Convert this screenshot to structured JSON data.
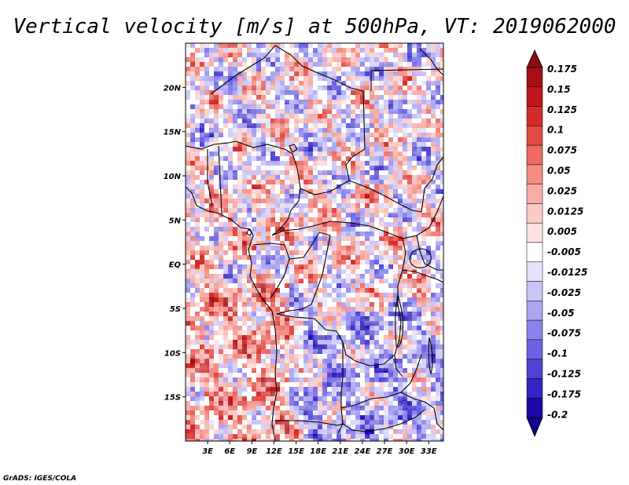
{
  "title": "Vertical velocity [m/s] at 500hPa, VT: 2019062000",
  "credit": "GrADS: IGES/COLA",
  "map": {
    "lon_range": [
      0,
      35
    ],
    "lat_range": [
      -20,
      25
    ],
    "lon_ticks": [
      {
        "label": "3E",
        "lon": 3
      },
      {
        "label": "6E",
        "lon": 6
      },
      {
        "label": "9E",
        "lon": 9
      },
      {
        "label": "12E",
        "lon": 12
      },
      {
        "label": "15E",
        "lon": 15
      },
      {
        "label": "18E",
        "lon": 18
      },
      {
        "label": "21E",
        "lon": 21
      },
      {
        "label": "24E",
        "lon": 24
      },
      {
        "label": "27E",
        "lon": 27
      },
      {
        "label": "30E",
        "lon": 30
      },
      {
        "label": "33E",
        "lon": 33
      }
    ],
    "lat_ticks": [
      {
        "label": "20N",
        "lat": 20
      },
      {
        "label": "15N",
        "lat": 15
      },
      {
        "label": "10N",
        "lat": 10
      },
      {
        "label": "5N",
        "lat": 5
      },
      {
        "label": "EQ",
        "lat": 0
      },
      {
        "label": "5S",
        "lat": -5
      },
      {
        "label": "10S",
        "lat": -10
      },
      {
        "label": "15S",
        "lat": -15
      }
    ]
  },
  "colorbar": {
    "levels": [
      {
        "label": "0.175",
        "color": "#a50f15"
      },
      {
        "label": "0.15",
        "color": "#c0161e"
      },
      {
        "label": "0.125",
        "color": "#d52a2a"
      },
      {
        "label": "0.1",
        "color": "#e24a44"
      },
      {
        "label": "0.075",
        "color": "#ee6a62"
      },
      {
        "label": "0.05",
        "color": "#f48d85"
      },
      {
        "label": "0.025",
        "color": "#f8aca4"
      },
      {
        "label": "0.0125",
        "color": "#fbcac4"
      },
      {
        "label": "0.005",
        "color": "#fde3df"
      },
      {
        "label": "-0.005",
        "color": "#ffffff"
      },
      {
        "label": "-0.0125",
        "color": "#e4e2fb"
      },
      {
        "label": "-0.025",
        "color": "#c9c5f7"
      },
      {
        "label": "-0.05",
        "color": "#aaa4f2"
      },
      {
        "label": "-0.075",
        "color": "#8b83ec"
      },
      {
        "label": "-0.1",
        "color": "#6c62e3"
      },
      {
        "label": "-0.125",
        "color": "#4f43d6"
      },
      {
        "label": "-0.175",
        "color": "#3424c2"
      },
      {
        "label": "-0.2",
        "color": "#1c0aa8"
      }
    ],
    "top_arrow_color": "#8a0d12",
    "bottom_arrow_color": "#120090"
  },
  "colors": {
    "ascent": "#e24a44",
    "descent": "#6c62e3",
    "neutral": "#ffffff",
    "border": "#000000"
  }
}
